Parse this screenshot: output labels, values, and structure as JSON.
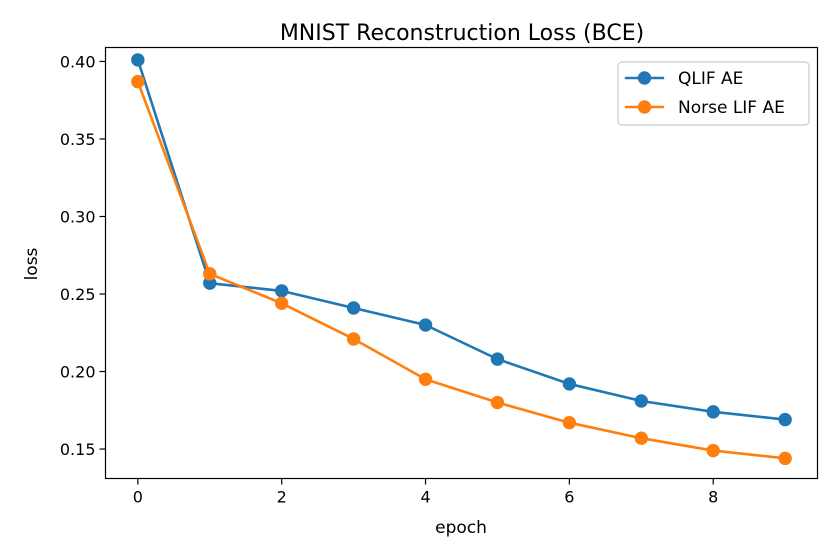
{
  "chart_data": {
    "type": "line",
    "title": "MNIST Reconstruction Loss (BCE)",
    "xlabel": "epoch",
    "ylabel": "loss",
    "xlim": [
      -0.45,
      9.45
    ],
    "ylim": [
      0.131,
      0.409
    ],
    "xticks": [
      0,
      2,
      4,
      6,
      8
    ],
    "xtick_labels": [
      "0",
      "2",
      "4",
      "6",
      "8"
    ],
    "yticks": [
      0.15,
      0.2,
      0.25,
      0.3,
      0.35,
      0.4
    ],
    "ytick_labels": [
      "0.15",
      "0.20",
      "0.25",
      "0.30",
      "0.35",
      "0.40"
    ],
    "grid": false,
    "legend_position": "top-right",
    "x": [
      0,
      1,
      2,
      3,
      4,
      5,
      6,
      7,
      8,
      9
    ],
    "series": [
      {
        "name": "QLIF AE",
        "color": "#1f77b4",
        "values": [
          0.401,
          0.257,
          0.252,
          0.241,
          0.23,
          0.208,
          0.192,
          0.181,
          0.174,
          0.169
        ]
      },
      {
        "name": "Norse LIF AE",
        "color": "#ff7f0e",
        "values": [
          0.387,
          0.263,
          0.244,
          0.221,
          0.195,
          0.18,
          0.167,
          0.157,
          0.149,
          0.144
        ]
      }
    ]
  }
}
